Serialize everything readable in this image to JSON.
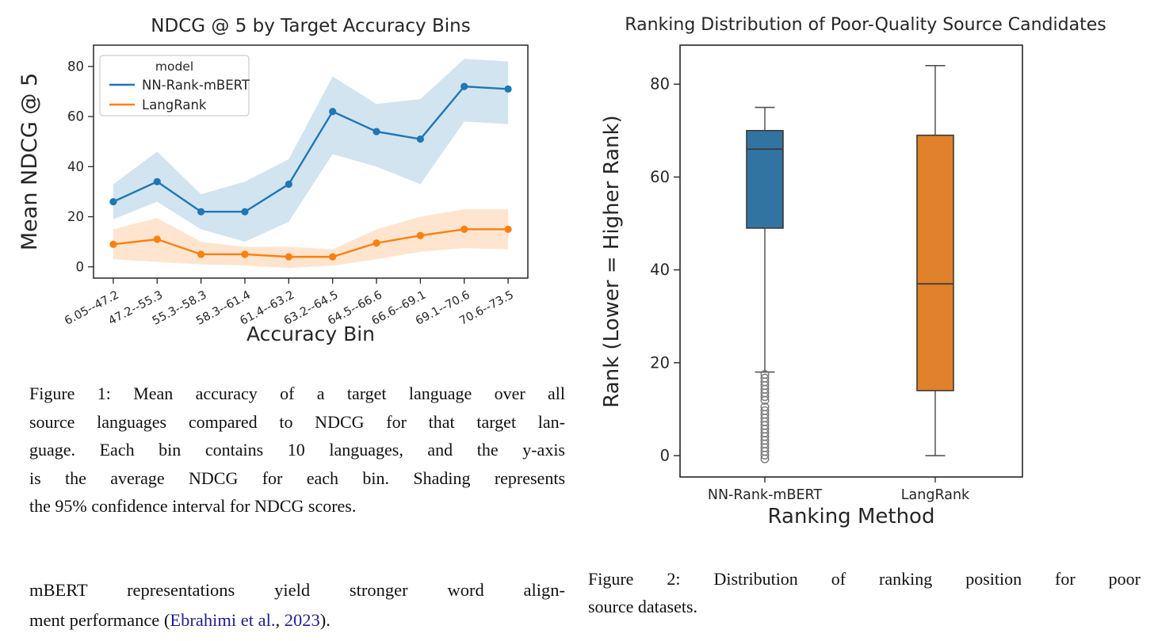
{
  "figure1": {
    "chart_data": {
      "type": "line",
      "title": "NDCG @ 5 by Target Accuracy Bins",
      "xlabel": "Accuracy Bin",
      "ylabel": "Mean NDCG @ 5",
      "legend_title": "model",
      "legend_position": "upper-left",
      "grid": false,
      "categories": [
        "6.05--47.2",
        "47.2--55.3",
        "55.3--58.3",
        "58.3--61.4",
        "61.4--63.2",
        "63.2--64.5",
        "64.5--66.6",
        "66.6--69.1",
        "69.1--70.6",
        "70.6--73.5"
      ],
      "yticks": [
        0,
        20,
        40,
        60,
        80
      ],
      "ylim": [
        -4.5,
        88.5
      ],
      "ci_note": "shaded band = 95% confidence interval",
      "series": [
        {
          "name": "NN-Rank-mBERT",
          "color": "#1f77b4",
          "values": [
            26,
            34,
            22,
            22,
            33,
            62,
            54,
            51,
            72,
            71
          ],
          "ci_upper": [
            33,
            46,
            29,
            34,
            43,
            76,
            65,
            67,
            83,
            82
          ],
          "ci_lower": [
            19,
            26,
            15,
            10,
            18,
            45,
            40,
            33,
            58,
            57
          ]
        },
        {
          "name": "LangRank",
          "color": "#ff7f0e",
          "values": [
            9,
            11,
            5,
            5,
            4,
            4,
            9.5,
            12.5,
            15,
            15
          ],
          "ci_upper": [
            15,
            19.5,
            10,
            8,
            8,
            7,
            15,
            20,
            23,
            23
          ],
          "ci_lower": [
            3,
            2,
            1,
            0.5,
            -0.5,
            0.5,
            3,
            6,
            7.5,
            7
          ]
        }
      ]
    },
    "caption_lines": [
      "Figure 1: Mean accuracy of a target language over all",
      "source languages compared to NDCG for that target lan-",
      "guage. Each bin contains 10 languages, and the y-axis",
      "is the average NDCG for each bin. Shading represents",
      "the 95% confidence interval for NDCG scores."
    ]
  },
  "figure2": {
    "chart_data": {
      "type": "boxplot",
      "title": "Ranking Distribution of Poor-Quality Source Candidates",
      "xlabel": "Ranking Method",
      "ylabel": "Rank (Lower = Higher Rank)",
      "yticks": [
        0,
        20,
        40,
        60,
        80
      ],
      "ylim": [
        -4.6,
        88.4
      ],
      "grid": false,
      "boxes": [
        {
          "label": "NN-Rank-mBERT",
          "color": "#3274a1",
          "whisker_low": 18,
          "q1": 49,
          "median": 66,
          "q3": 70,
          "whisker_high": 75,
          "outliers": [
            17.5,
            16.7,
            15.9,
            15.1,
            14.3,
            13.5,
            12.7,
            11.9,
            10.5,
            9.7,
            8.9,
            8.1,
            7.3,
            6.5,
            5.7,
            4.9,
            4.1,
            3.3,
            2.5,
            1.7,
            0.9,
            0.1,
            -0.7
          ]
        },
        {
          "label": "LangRank",
          "color": "#e1812c",
          "whisker_low": 0,
          "q1": 14,
          "median": 37,
          "q3": 69,
          "whisker_high": 84,
          "outliers": []
        }
      ]
    },
    "caption_lines": [
      "Figure 2: Distribution of ranking position for poor",
      "source datasets."
    ]
  },
  "body_text": {
    "line1": "mBERT representations yield stronger word align-",
    "line2_pre": "ment performance (",
    "line2_cite_authors": "Ebrahimi et al.",
    "line2_sep": ", ",
    "line2_cite_year": "2023",
    "line2_post": ")."
  },
  "colors": {
    "line_blue": "#1f77b4",
    "line_orange": "#ff7f0e",
    "box_blue": "#3274a1",
    "box_orange": "#e1812c",
    "citation_link": "#1f1f8f",
    "axis": "#262626",
    "whisker_gray": "#555555"
  }
}
